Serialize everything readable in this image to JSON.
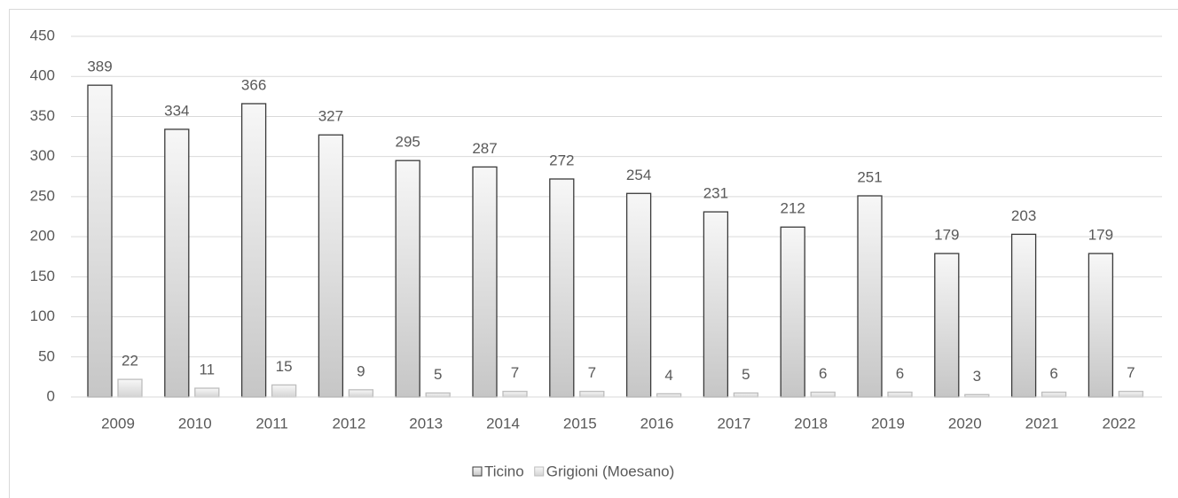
{
  "chart_data": {
    "type": "bar",
    "categories": [
      "2009",
      "2010",
      "2011",
      "2012",
      "2013",
      "2014",
      "2015",
      "2016",
      "2017",
      "2018",
      "2019",
      "2020",
      "2021",
      "2022"
    ],
    "series": [
      {
        "name": "Ticino",
        "color": "#c6c6c6",
        "edgecolor": "#3a3a3a",
        "values": [
          389,
          334,
          366,
          327,
          295,
          287,
          272,
          254,
          231,
          212,
          251,
          179,
          203,
          179
        ]
      },
      {
        "name": "Grigioni (Moesano)",
        "color": "#d4d4d4",
        "edgecolor": "#bdbdbd",
        "values": [
          22,
          11,
          15,
          9,
          5,
          7,
          7,
          4,
          5,
          6,
          6,
          3,
          6,
          7
        ]
      }
    ],
    "ylim": [
      0,
      450
    ],
    "yticks": [
      0,
      50,
      100,
      150,
      200,
      250,
      300,
      350,
      400,
      450
    ],
    "grid": true,
    "legend": "bottom"
  }
}
